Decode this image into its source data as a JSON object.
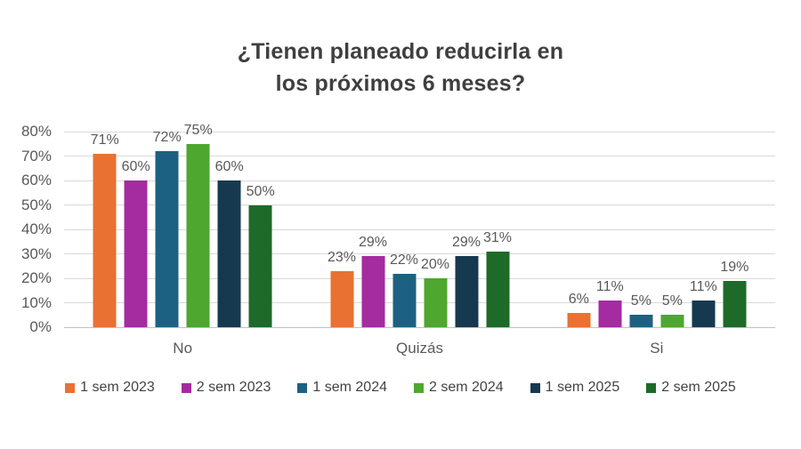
{
  "chart_data": {
    "type": "bar",
    "title": "¿Tienen planeado reducirla en los próximos 6 meses?",
    "title_lines": [
      "¿Tienen planeado reducirla en",
      "los próximos 6 meses?"
    ],
    "categories": [
      "No",
      "Quizás",
      "Si"
    ],
    "series": [
      {
        "name": "1 sem 2023",
        "color": "#E97132",
        "values": [
          71,
          23,
          6
        ]
      },
      {
        "name": "2 sem 2023",
        "color": "#A42BA0",
        "values": [
          60,
          29,
          11
        ]
      },
      {
        "name": "1 sem 2024",
        "color": "#1D6182",
        "values": [
          72,
          22,
          5
        ]
      },
      {
        "name": "2 sem 2024",
        "color": "#4EA72E",
        "values": [
          75,
          20,
          5
        ]
      },
      {
        "name": "1 sem 2025",
        "color": "#17394F",
        "values": [
          60,
          29,
          11
        ]
      },
      {
        "name": "2 sem 2025",
        "color": "#1E6A28",
        "values": [
          50,
          31,
          19
        ]
      }
    ],
    "value_suffix": "%",
    "data_labels": true,
    "ylim": [
      0,
      80
    ],
    "ytick_step": 10,
    "ytick_labels": [
      "0%",
      "10%",
      "20%",
      "30%",
      "40%",
      "50%",
      "60%",
      "70%",
      "80%"
    ],
    "xlabel": "",
    "ylabel": "",
    "grid": true,
    "legend_position": "bottom",
    "style_colors": {
      "title_text": "#3F3F3F",
      "axis_text": "#595959",
      "data_label_text": "#595959",
      "gridline": "#D9D9D9",
      "background": "#FFFFFF"
    }
  }
}
